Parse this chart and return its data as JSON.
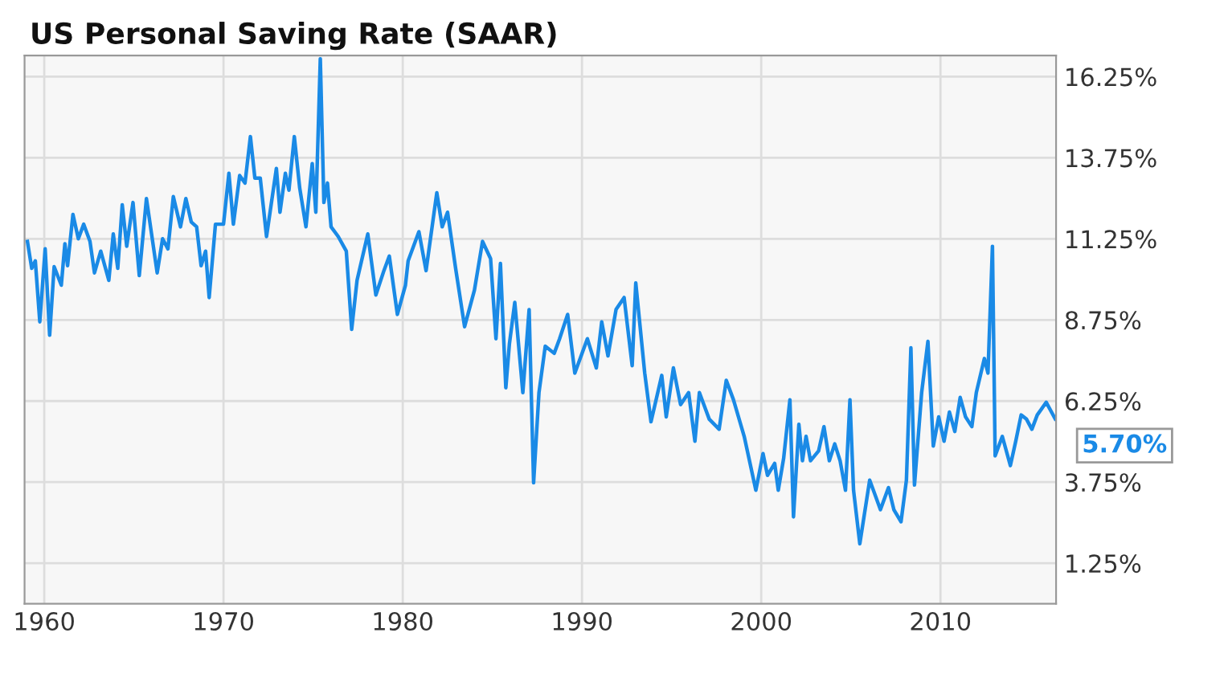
{
  "chart_data": {
    "type": "line",
    "title": "US Personal Saving Rate (SAAR)",
    "x": [
      1959.06,
      1959.3,
      1959.5,
      1959.75,
      1960.05,
      1960.3,
      1960.55,
      1960.95,
      1961.15,
      1961.3,
      1961.6,
      1961.9,
      1962.2,
      1962.55,
      1962.8,
      1963.15,
      1963.6,
      1963.85,
      1964.1,
      1964.35,
      1964.6,
      1964.95,
      1965.3,
      1965.7,
      1966.3,
      1966.6,
      1966.9,
      1967.2,
      1967.6,
      1967.9,
      1968.2,
      1968.5,
      1968.75,
      1969.0,
      1969.2,
      1969.55,
      1970.0,
      1970.3,
      1970.55,
      1970.9,
      1971.2,
      1971.5,
      1971.75,
      1972.05,
      1972.4,
      1972.95,
      1973.15,
      1973.45,
      1973.65,
      1973.95,
      1974.25,
      1974.6,
      1974.95,
      1975.15,
      1975.4,
      1975.6,
      1975.8,
      1976.0,
      1976.4,
      1976.85,
      1977.15,
      1977.45,
      1978.05,
      1978.5,
      1978.95,
      1979.25,
      1979.7,
      1980.15,
      1980.3,
      1980.9,
      1981.3,
      1981.9,
      1982.2,
      1982.5,
      1982.95,
      1983.45,
      1984.0,
      1984.45,
      1984.9,
      1985.2,
      1985.45,
      1985.75,
      1985.95,
      1986.25,
      1986.7,
      1987.05,
      1987.3,
      1987.6,
      1987.95,
      1988.45,
      1988.75,
      1989.2,
      1989.6,
      1990.3,
      1990.8,
      1991.1,
      1991.45,
      1991.9,
      1992.35,
      1992.8,
      1993.0,
      1993.5,
      1993.85,
      1994.45,
      1994.7,
      1995.1,
      1995.5,
      1995.95,
      1996.3,
      1996.55,
      1997.1,
      1997.65,
      1998.05,
      1998.45,
      1999.05,
      1999.7,
      2000.1,
      2000.35,
      2000.75,
      2000.95,
      2001.25,
      2001.6,
      2001.8,
      2002.1,
      2002.3,
      2002.5,
      2002.75,
      2003.2,
      2003.5,
      2003.8,
      2004.1,
      2004.4,
      2004.7,
      2004.95,
      2005.15,
      2005.5,
      2006.05,
      2006.35,
      2006.65,
      2007.1,
      2007.4,
      2007.8,
      2008.1,
      2008.35,
      2008.55,
      2008.95,
      2009.3,
      2009.6,
      2009.9,
      2010.2,
      2010.5,
      2010.8,
      2011.1,
      2011.4,
      2011.75,
      2012.0,
      2012.45,
      2012.65,
      2012.9,
      2013.05,
      2013.45,
      2013.9,
      2014.2,
      2014.5,
      2014.8,
      2015.1,
      2015.4,
      2015.9,
      2016.4
    ],
    "series": [
      {
        "color": "#1a8ae6",
        "values": [
          11.17,
          10.34,
          10.57,
          8.69,
          10.94,
          8.28,
          10.39,
          9.82,
          11.1,
          10.42,
          12.0,
          11.25,
          11.7,
          11.17,
          10.2,
          10.87,
          9.97,
          11.4,
          10.34,
          12.3,
          11.02,
          12.37,
          10.12,
          12.49,
          10.2,
          11.25,
          10.94,
          12.55,
          11.62,
          12.49,
          11.77,
          11.62,
          10.42,
          10.87,
          9.44,
          11.7,
          11.7,
          13.27,
          11.7,
          13.2,
          12.97,
          14.4,
          13.12,
          13.12,
          11.32,
          13.42,
          12.07,
          13.27,
          12.75,
          14.4,
          12.82,
          11.62,
          13.57,
          12.07,
          16.8,
          12.37,
          12.97,
          11.62,
          11.32,
          10.87,
          8.46,
          9.97,
          11.4,
          9.52,
          10.27,
          10.72,
          8.92,
          9.82,
          10.57,
          11.47,
          10.27,
          12.67,
          11.62,
          12.07,
          10.34,
          8.54,
          9.67,
          11.17,
          10.64,
          8.17,
          10.49,
          6.66,
          8.01,
          9.29,
          6.51,
          9.07,
          3.73,
          6.51,
          7.94,
          7.72,
          8.17,
          8.92,
          7.11,
          8.17,
          7.27,
          8.69,
          7.64,
          9.07,
          9.44,
          7.34,
          9.89,
          7.11,
          5.61,
          7.04,
          5.76,
          7.27,
          6.14,
          6.51,
          5.01,
          6.51,
          5.69,
          5.38,
          6.89,
          6.29,
          5.16,
          3.5,
          4.63,
          3.96,
          4.33,
          3.5,
          4.48,
          6.29,
          2.68,
          5.53,
          4.41,
          5.16,
          4.41,
          4.71,
          5.46,
          4.41,
          4.93,
          4.41,
          3.5,
          6.29,
          3.5,
          1.85,
          3.81,
          3.36,
          2.9,
          3.58,
          2.9,
          2.53,
          3.81,
          7.89,
          3.66,
          6.51,
          8.09,
          4.86,
          5.76,
          5.01,
          5.91,
          5.31,
          6.36,
          5.76,
          5.46,
          6.51,
          7.56,
          7.11,
          11.02,
          4.56,
          5.16,
          4.26,
          5.01,
          5.82,
          5.69,
          5.38,
          5.82,
          6.21,
          5.7
        ]
      }
    ],
    "xlim": [
      1958.9,
      2016.45
    ],
    "xticks": [
      1960,
      1970,
      1980,
      1990,
      2000,
      2010
    ],
    "ylim": [
      0,
      16.9
    ],
    "yticks": [
      {
        "value": 1.25,
        "label": "1.25%"
      },
      {
        "value": 3.75,
        "label": "3.75%"
      },
      {
        "value": 6.25,
        "label": "6.25%"
      },
      {
        "value": 8.75,
        "label": "8.75%"
      },
      {
        "value": 11.25,
        "label": "11.25%"
      },
      {
        "value": 13.75,
        "label": "13.75%"
      },
      {
        "value": 16.25,
        "label": "16.25%"
      }
    ],
    "annotations": [
      {
        "text": "5.70%",
        "x": 2016.4,
        "y": 5.7
      }
    ],
    "grid": true,
    "marker": "none",
    "line_style": "solid",
    "legend": false
  }
}
